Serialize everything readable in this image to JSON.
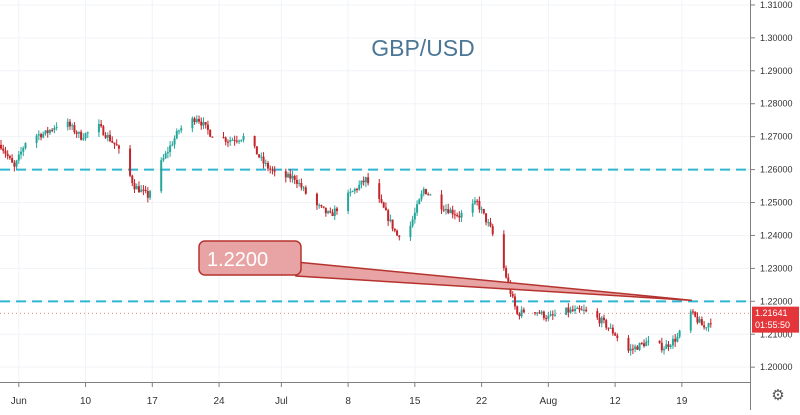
{
  "chart_data": {
    "type": "candlestick",
    "title": "GBP/USD",
    "x_tick_labels": [
      "Jun",
      "10",
      "17",
      "24",
      "Jul",
      "8",
      "15",
      "22",
      "Aug",
      "12",
      "19"
    ],
    "y_tick_labels": [
      "1.31000",
      "1.30000",
      "1.29000",
      "1.28000",
      "1.27000",
      "1.26000",
      "1.25000",
      "1.24000",
      "1.23000",
      "1.22000",
      "1.21000",
      "1.20000"
    ],
    "ylim": [
      1.1955,
      1.3115
    ],
    "current_price": "1.21641",
    "countdown": "01:55:50",
    "horizontal_levels": [
      1.26,
      1.22
    ],
    "callout": {
      "label": "1.2200",
      "points_to": 1.2203
    },
    "path": [
      [
        0,
        1.2675
      ],
      [
        3,
        1.2605
      ],
      [
        6,
        1.27
      ],
      [
        10,
        1.271
      ],
      [
        14,
        1.275
      ],
      [
        18,
        1.27
      ],
      [
        22,
        1.273
      ],
      [
        26,
        1.267
      ],
      [
        30,
        1.255
      ],
      [
        33,
        1.252
      ],
      [
        36,
        1.262
      ],
      [
        40,
        1.272
      ],
      [
        44,
        1.276
      ],
      [
        47,
        1.271
      ],
      [
        51,
        1.269
      ],
      [
        55,
        1.27
      ],
      [
        59,
        1.262
      ],
      [
        62,
        1.258
      ],
      [
        66,
        1.2575
      ],
      [
        70,
        1.25
      ],
      [
        74,
        1.246
      ],
      [
        78,
        1.252
      ],
      [
        82,
        1.257
      ],
      [
        86,
        1.248
      ],
      [
        89,
        1.24
      ],
      [
        92,
        1.243
      ],
      [
        95,
        1.254
      ],
      [
        99,
        1.249
      ],
      [
        103,
        1.246
      ],
      [
        107,
        1.25
      ],
      [
        110,
        1.242
      ],
      [
        112,
        1.235
      ],
      [
        114,
        1.225
      ],
      [
        116,
        1.216
      ],
      [
        119,
        1.218
      ],
      [
        123,
        1.215
      ],
      [
        127,
        1.217
      ],
      [
        131,
        1.217
      ],
      [
        135,
        1.214
      ],
      [
        138,
        1.21
      ],
      [
        141,
        1.205
      ],
      [
        145,
        1.2075
      ],
      [
        149,
        1.206
      ],
      [
        152,
        1.209
      ],
      [
        155,
        1.2165
      ],
      [
        158,
        1.212
      ],
      [
        161,
        1.2164
      ]
    ]
  },
  "colors": {
    "up": "#26a69a",
    "down": "#c2242a",
    "level_line": "#2fb6d2",
    "callout_fill": "#e8a4a4",
    "callout_stroke": "#b5332e",
    "title": "#4b7695",
    "price_tag": "#e4363a"
  },
  "icons": {
    "settings": "gear-icon"
  }
}
